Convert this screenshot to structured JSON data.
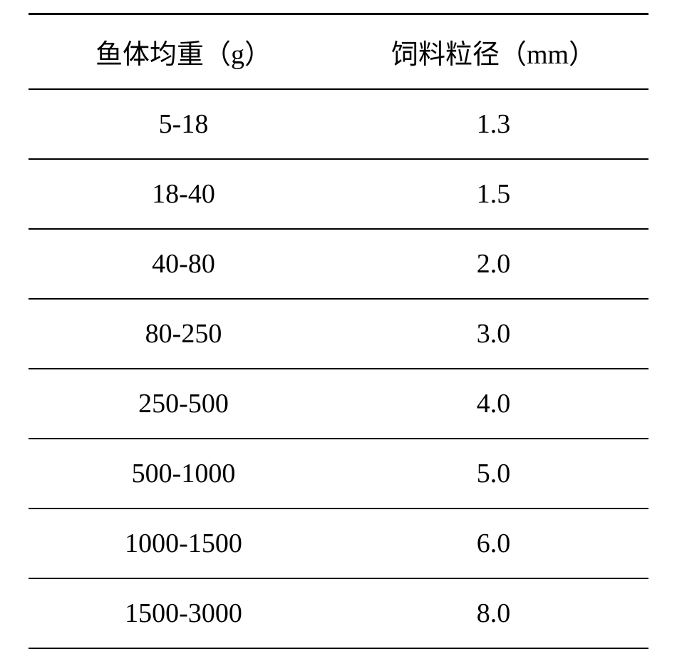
{
  "table": {
    "columns": [
      "鱼体均重（g）",
      "饲料粒径（mm）"
    ],
    "rows": [
      [
        "5-18",
        "1.3"
      ],
      [
        "18-40",
        "1.5"
      ],
      [
        "40-80",
        "2.0"
      ],
      [
        "80-250",
        "3.0"
      ],
      [
        "250-500",
        "4.0"
      ],
      [
        "500-1000",
        "5.0"
      ],
      [
        "1000-1500",
        "6.0"
      ],
      [
        "1500-3000",
        "8.0"
      ]
    ],
    "header_font_size": 38,
    "cell_font_size": 38,
    "border_color": "#000000",
    "top_border_width": 3,
    "row_border_width": 2,
    "background_color": "#ffffff",
    "text_color": "#000000"
  }
}
